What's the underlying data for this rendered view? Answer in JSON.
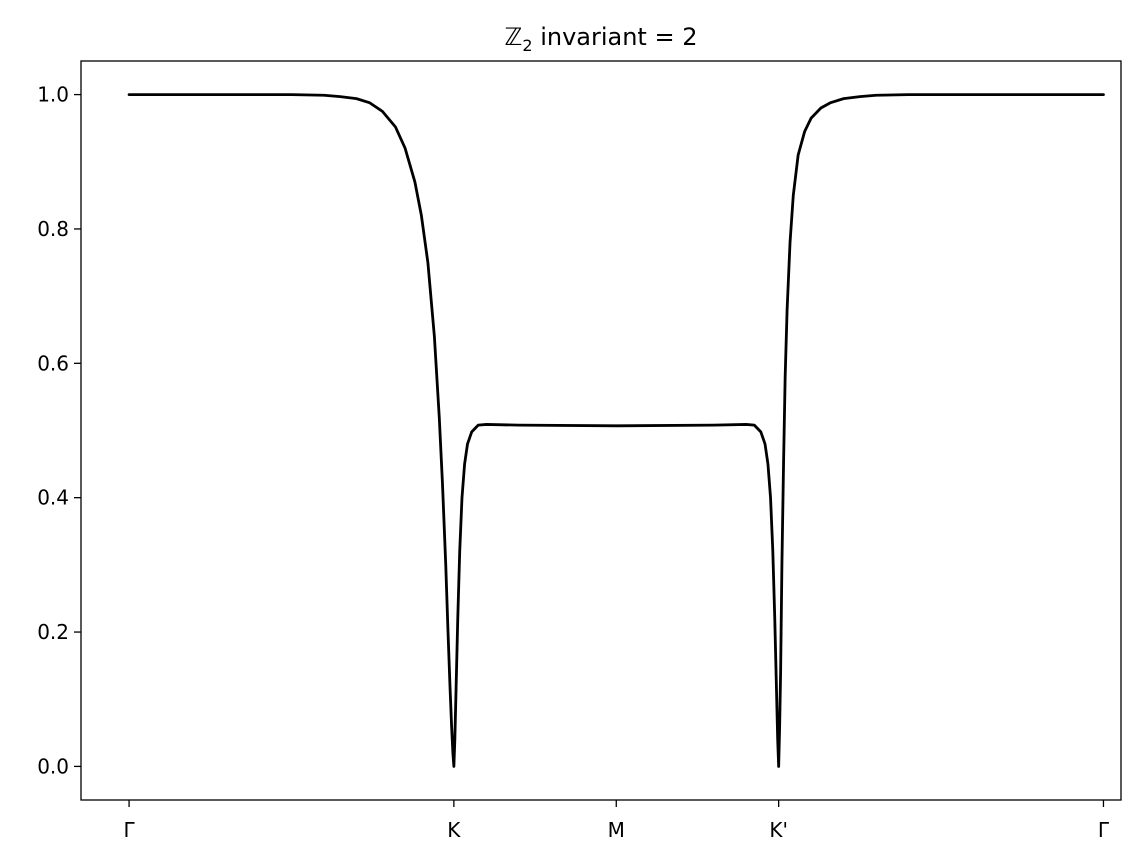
{
  "chart_data": {
    "type": "line",
    "title": "ℤ₂ invariant = 2",
    "title_parts": {
      "symbol": "ℤ",
      "subscript": "2",
      "rest": " invariant = 2"
    },
    "xlabel": "",
    "ylabel": "",
    "x_ticks": [
      {
        "label": "Γ",
        "value": 0
      },
      {
        "label": "K",
        "value": 1
      },
      {
        "label": "M",
        "value": 1.5
      },
      {
        "label": "K'",
        "value": 2
      },
      {
        "label": "Γ",
        "value": 3
      }
    ],
    "y_ticks": [
      {
        "label": "0.0",
        "value": 0.0
      },
      {
        "label": "0.2",
        "value": 0.2
      },
      {
        "label": "0.4",
        "value": 0.4
      },
      {
        "label": "0.6",
        "value": 0.6
      },
      {
        "label": "0.8",
        "value": 0.8
      },
      {
        "label": "1.0",
        "value": 1.0
      }
    ],
    "xlim": [
      -0.148,
      3.054
    ],
    "ylim": [
      -0.05,
      1.05
    ],
    "grid": false,
    "series": [
      {
        "color": "#000000",
        "points": [
          [
            0.0,
            1.0
          ],
          [
            0.3,
            1.0
          ],
          [
            0.5,
            1.0
          ],
          [
            0.6,
            0.999
          ],
          [
            0.65,
            0.997
          ],
          [
            0.7,
            0.994
          ],
          [
            0.74,
            0.988
          ],
          [
            0.78,
            0.975
          ],
          [
            0.82,
            0.952
          ],
          [
            0.85,
            0.92
          ],
          [
            0.88,
            0.87
          ],
          [
            0.9,
            0.82
          ],
          [
            0.92,
            0.75
          ],
          [
            0.94,
            0.64
          ],
          [
            0.955,
            0.52
          ],
          [
            0.965,
            0.42
          ],
          [
            0.975,
            0.3
          ],
          [
            0.982,
            0.2
          ],
          [
            0.988,
            0.12
          ],
          [
            0.993,
            0.06
          ],
          [
            0.997,
            0.02
          ],
          [
            1.0,
            0.0
          ],
          [
            1.003,
            0.04
          ],
          [
            1.007,
            0.12
          ],
          [
            1.012,
            0.22
          ],
          [
            1.018,
            0.32
          ],
          [
            1.025,
            0.4
          ],
          [
            1.033,
            0.45
          ],
          [
            1.042,
            0.48
          ],
          [
            1.055,
            0.498
          ],
          [
            1.075,
            0.508
          ],
          [
            1.1,
            0.509
          ],
          [
            1.2,
            0.508
          ],
          [
            1.5,
            0.507
          ],
          [
            1.8,
            0.508
          ],
          [
            1.9,
            0.509
          ],
          [
            1.925,
            0.508
          ],
          [
            1.945,
            0.498
          ],
          [
            1.958,
            0.48
          ],
          [
            1.967,
            0.45
          ],
          [
            1.975,
            0.4
          ],
          [
            1.982,
            0.32
          ],
          [
            1.988,
            0.22
          ],
          [
            1.993,
            0.12
          ],
          [
            1.997,
            0.04
          ],
          [
            2.0,
            0.0
          ],
          [
            2.003,
            0.06
          ],
          [
            2.006,
            0.14
          ],
          [
            2.01,
            0.3
          ],
          [
            2.015,
            0.45
          ],
          [
            2.02,
            0.58
          ],
          [
            2.026,
            0.68
          ],
          [
            2.035,
            0.78
          ],
          [
            2.045,
            0.85
          ],
          [
            2.06,
            0.91
          ],
          [
            2.08,
            0.945
          ],
          [
            2.1,
            0.965
          ],
          [
            2.13,
            0.98
          ],
          [
            2.16,
            0.988
          ],
          [
            2.2,
            0.994
          ],
          [
            2.25,
            0.997
          ],
          [
            2.3,
            0.999
          ],
          [
            2.4,
            1.0
          ],
          [
            2.6,
            1.0
          ],
          [
            3.0,
            1.0
          ]
        ]
      }
    ]
  }
}
